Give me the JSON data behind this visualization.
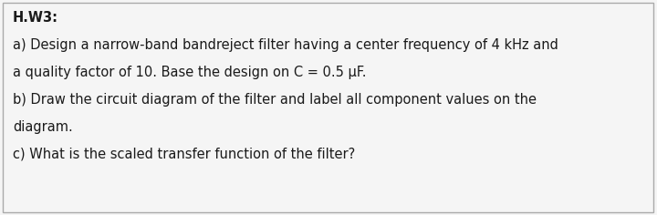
{
  "title": "H.W3:",
  "line1": "a) Design a narrow-band bandreject filter having a center frequency of 4 kHz and",
  "line2": "a quality factor of 10. Base the design on C = 0.5 μF.",
  "line3": "b) Draw the circuit diagram of the filter and label all component values on the",
  "line4": "diagram.",
  "line5": "c) What is the scaled transfer function of the filter?",
  "bg_color": "#f5f5f5",
  "text_color": "#1a1a1a",
  "font_size_title": 10.5,
  "font_size_body": 10.5,
  "border_color": "#aaaaaa",
  "left_line_color": "#555555"
}
